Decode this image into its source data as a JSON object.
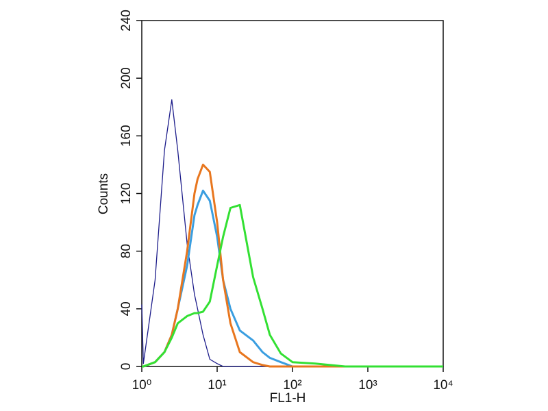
{
  "chart_data": {
    "type": "line",
    "x_label": "FL1-H",
    "y_label": "Counts",
    "xlog": true,
    "xlim": [
      1,
      10000
    ],
    "ylim": [
      0,
      240
    ],
    "xticks": [
      {
        "value": 1,
        "label": "10⁰"
      },
      {
        "value": 10,
        "label": "10¹"
      },
      {
        "value": 100,
        "label": "10²"
      },
      {
        "value": 1000,
        "label": "10³"
      },
      {
        "value": 10000,
        "label": "10⁴"
      }
    ],
    "yticks": [
      0,
      40,
      80,
      120,
      160,
      200,
      240
    ],
    "x": [
      1,
      1.05,
      1.5,
      2,
      2.5,
      3,
      4,
      5,
      5.5,
      6.5,
      8,
      10,
      12,
      15,
      20,
      30,
      40,
      50,
      70,
      100,
      200,
      500,
      10000
    ],
    "series": [
      {
        "color": "#1c1c8a",
        "width": 1.3,
        "values": [
          43,
          2,
          60,
          150,
          185,
          150,
          85,
          50,
          40,
          22,
          5,
          2,
          0,
          0,
          0,
          0,
          0,
          0,
          0,
          0,
          0,
          0,
          0
        ]
      },
      {
        "color": "#3a9ee0",
        "width": 3,
        "values": [
          0,
          0,
          3,
          10,
          22,
          40,
          70,
          105,
          112,
          122,
          115,
          90,
          60,
          40,
          25,
          18,
          10,
          6,
          3,
          0,
          0,
          0,
          0
        ]
      },
      {
        "color": "#e8761e",
        "width": 3,
        "values": [
          0,
          0,
          3,
          10,
          22,
          40,
          80,
          120,
          130,
          140,
          135,
          100,
          60,
          30,
          10,
          3,
          1,
          0,
          0,
          0,
          0,
          0,
          0
        ]
      },
      {
        "color": "#33e033",
        "width": 3,
        "values": [
          0,
          0,
          3,
          10,
          20,
          30,
          35,
          37,
          37,
          38,
          45,
          70,
          90,
          110,
          112,
          62,
          40,
          22,
          9,
          3,
          2,
          0,
          0
        ]
      }
    ]
  }
}
